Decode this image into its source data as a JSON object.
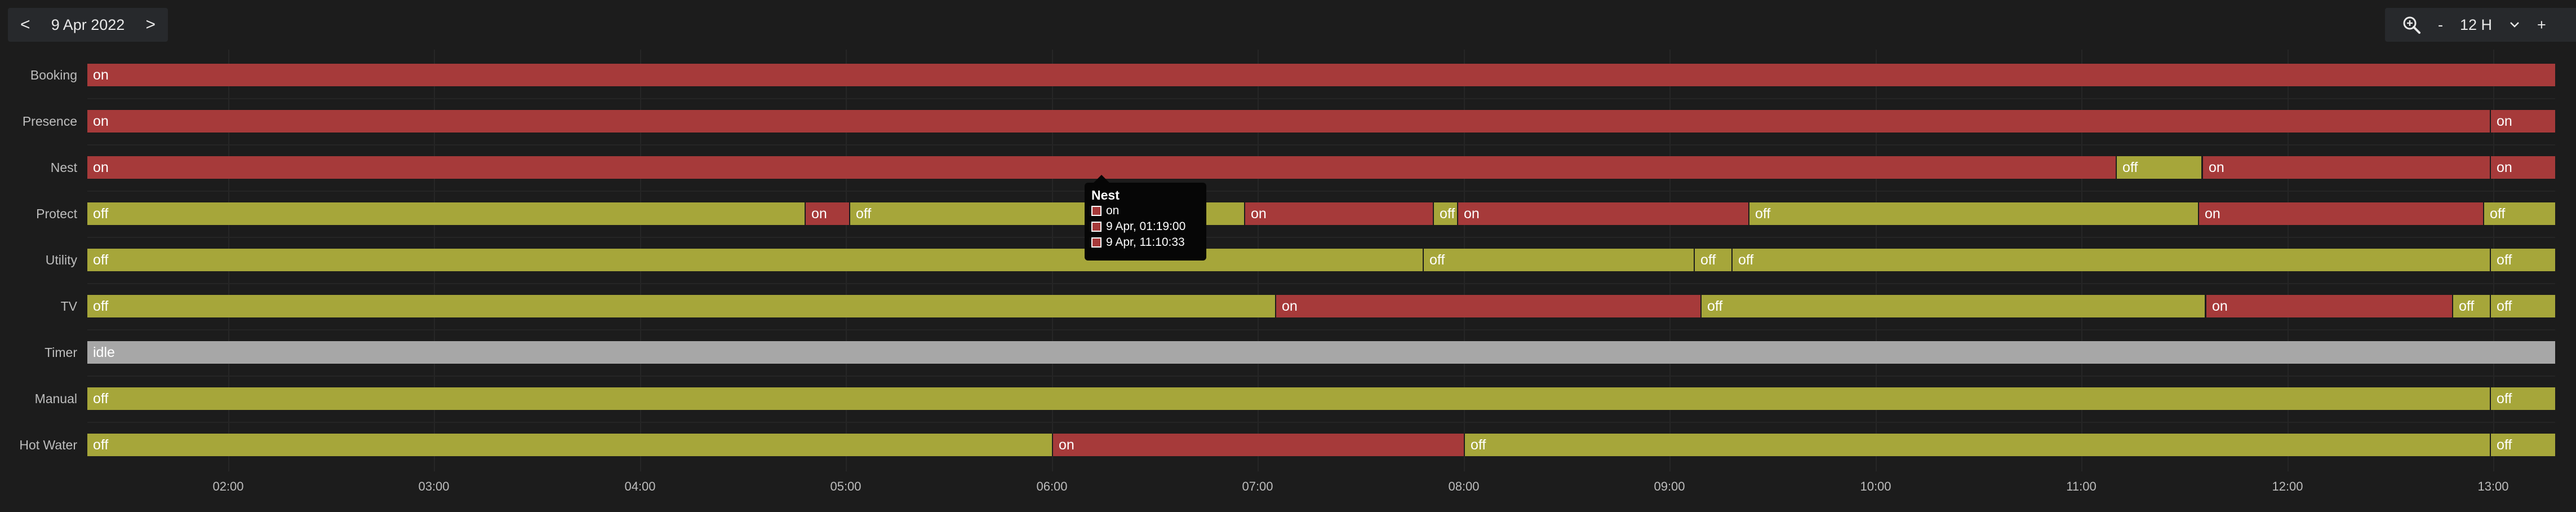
{
  "header": {
    "prev_label": "<",
    "date": "9 Apr 2022",
    "next_label": ">",
    "zoom_out_label": "-",
    "range_value": "12 H",
    "zoom_in_label": "+"
  },
  "axis": {
    "start_hour": 1.3167,
    "end_hour": 13.3,
    "ticks": [
      "02:00",
      "03:00",
      "04:00",
      "05:00",
      "06:00",
      "07:00",
      "08:00",
      "09:00",
      "10:00",
      "11:00",
      "12:00",
      "13:00"
    ]
  },
  "colors": {
    "on": "#a63a3a",
    "off": "#a6a63a",
    "idle": "#a7a7a7"
  },
  "rows": [
    {
      "label": "Booking",
      "segments": [
        {
          "state": "on",
          "start": "01:19",
          "end": "13:18"
        }
      ]
    },
    {
      "label": "Presence",
      "segments": [
        {
          "state": "on",
          "start": "01:19",
          "end": "12:59"
        },
        {
          "state": "on",
          "start": "12:59",
          "end": "13:18"
        }
      ]
    },
    {
      "label": "Nest",
      "segments": [
        {
          "state": "on",
          "start": "01:19",
          "end": "11:10"
        },
        {
          "state": "off",
          "start": "11:10",
          "end": "11:35"
        },
        {
          "state": "on",
          "start": "11:35",
          "end": "12:59"
        },
        {
          "state": "on",
          "start": "12:59",
          "end": "13:18"
        }
      ]
    },
    {
      "label": "Protect",
      "segments": [
        {
          "state": "off",
          "start": "01:19",
          "end": "04:48"
        },
        {
          "state": "on",
          "start": "04:48",
          "end": "05:01"
        },
        {
          "state": "off",
          "start": "05:01",
          "end": "06:56"
        },
        {
          "state": "on",
          "start": "06:56",
          "end": "07:51"
        },
        {
          "state": "off",
          "start": "07:51",
          "end": "07:58"
        },
        {
          "state": "on",
          "start": "07:58",
          "end": "09:23"
        },
        {
          "state": "off",
          "start": "09:23",
          "end": "11:34"
        },
        {
          "state": "on",
          "start": "11:34",
          "end": "12:57"
        },
        {
          "state": "off",
          "start": "12:57",
          "end": "13:18"
        }
      ]
    },
    {
      "label": "Utility",
      "segments": [
        {
          "state": "off",
          "start": "01:19",
          "end": "07:48"
        },
        {
          "state": "off",
          "start": "07:48",
          "end": "09:07"
        },
        {
          "state": "off",
          "start": "09:07",
          "end": "09:18"
        },
        {
          "state": "off",
          "start": "09:18",
          "end": "12:59"
        },
        {
          "state": "off",
          "start": "12:59",
          "end": "13:18"
        }
      ]
    },
    {
      "label": "TV",
      "segments": [
        {
          "state": "off",
          "start": "01:19",
          "end": "07:05"
        },
        {
          "state": "on",
          "start": "07:05",
          "end": "09:09"
        },
        {
          "state": "off",
          "start": "09:09",
          "end": "11:36"
        },
        {
          "state": "on",
          "start": "11:36",
          "end": "12:48"
        },
        {
          "state": "off",
          "start": "12:48",
          "end": "12:59"
        },
        {
          "state": "off",
          "start": "12:59",
          "end": "13:18"
        }
      ]
    },
    {
      "label": "Timer",
      "segments": [
        {
          "state": "idle",
          "start": "01:19",
          "end": "13:18"
        }
      ]
    },
    {
      "label": "Manual",
      "segments": [
        {
          "state": "off",
          "start": "01:19",
          "end": "12:59"
        },
        {
          "state": "off",
          "start": "12:59",
          "end": "13:18"
        }
      ]
    },
    {
      "label": "Hot Water",
      "segments": [
        {
          "state": "off",
          "start": "01:19",
          "end": "06:00"
        },
        {
          "state": "on",
          "start": "06:00",
          "end": "08:00"
        },
        {
          "state": "off",
          "start": "08:00",
          "end": "12:59"
        },
        {
          "state": "off",
          "start": "12:59",
          "end": "13:18"
        }
      ]
    }
  ],
  "tooltip": {
    "title": "Nest",
    "state": "on",
    "start": "9 Apr, 01:19:00",
    "end": "9 Apr, 11:10:33"
  },
  "icons": {
    "zoom": "zoom-in-magnifier-icon",
    "range_dropdown": "chevron-down-icon"
  }
}
